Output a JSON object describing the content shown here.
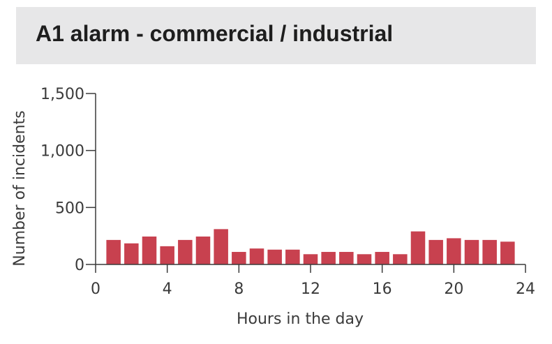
{
  "header": {
    "title": "A1 alarm - commercial / industrial"
  },
  "colors": {
    "bar": "#c8414f",
    "axis": "#3a3a3a",
    "title_bg": "#e7e7e8"
  },
  "chart_data": {
    "type": "bar",
    "title": "A1 alarm - commercial / industrial",
    "xlabel": "Hours in the day",
    "ylabel": "Number of incidents",
    "x": [
      1,
      2,
      3,
      4,
      5,
      6,
      7,
      8,
      9,
      10,
      11,
      12,
      13,
      14,
      15,
      16,
      17,
      18,
      19,
      20,
      21,
      22,
      23
    ],
    "values": [
      215,
      185,
      245,
      160,
      215,
      245,
      310,
      110,
      140,
      130,
      130,
      90,
      110,
      110,
      90,
      110,
      90,
      290,
      215,
      230,
      215,
      215,
      200
    ],
    "xlim": [
      0,
      24
    ],
    "ylim": [
      0,
      1500
    ],
    "xticks": [
      0,
      4,
      8,
      12,
      16,
      20,
      24
    ],
    "xtick_labels": [
      "0",
      "4",
      "8",
      "12",
      "16",
      "20",
      "24"
    ],
    "yticks": [
      0,
      500,
      1000,
      1500
    ],
    "ytick_labels": [
      "0",
      "500",
      "1,000",
      "1,500"
    ],
    "grid": false,
    "legend": "none"
  }
}
